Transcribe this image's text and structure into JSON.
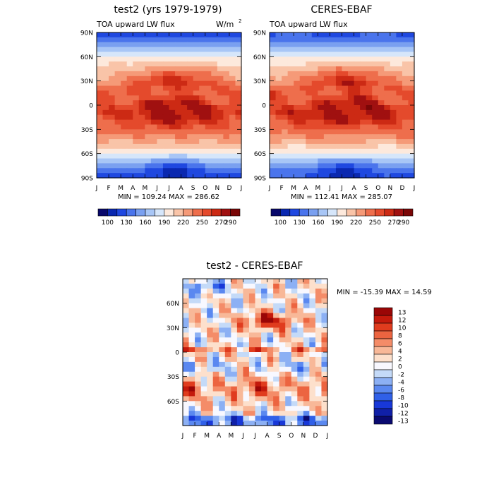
{
  "chart_data": [
    {
      "type": "heatmap",
      "title": "test2 (yrs 1979-1979)",
      "subtitle_left": "TOA upward LW flux",
      "subtitle_right": "W/m",
      "units_superscript": "2",
      "x_ticks": [
        "J",
        "F",
        "M",
        "A",
        "M",
        "J",
        "J",
        "A",
        "S",
        "O",
        "N",
        "D",
        "J"
      ],
      "y_ticks": [
        "90N",
        "60N",
        "30N",
        "0",
        "30S",
        "60S",
        "90S"
      ],
      "y_range": [
        -90,
        90
      ],
      "stats": "MIN = 109.24  MAX = 286.62",
      "min": 109.24,
      "max": 286.62,
      "colorbar_labels": [
        "100",
        "130",
        "160",
        "190",
        "220",
        "250",
        "270",
        "290"
      ]
    },
    {
      "type": "heatmap",
      "title": "CERES-EBAF",
      "subtitle_left": "TOA upward LW flux",
      "x_ticks": [
        "J",
        "F",
        "M",
        "A",
        "M",
        "J",
        "J",
        "A",
        "S",
        "O",
        "N",
        "D",
        "J"
      ],
      "y_ticks": [
        "90N",
        "60N",
        "30N",
        "0",
        "30S",
        "60S",
        "90S"
      ],
      "y_range": [
        -90,
        90
      ],
      "stats": "MIN = 112.41  MAX = 285.07",
      "min": 112.41,
      "max": 285.07,
      "colorbar_labels": [
        "100",
        "130",
        "160",
        "190",
        "220",
        "250",
        "270",
        "290"
      ]
    },
    {
      "type": "heatmap",
      "title": "test2 - CERES-EBAF",
      "x_ticks": [
        "J",
        "F",
        "M",
        "A",
        "M",
        "J",
        "J",
        "A",
        "S",
        "O",
        "N",
        "D",
        "J"
      ],
      "y_ticks": [
        "60N",
        "30N",
        "0",
        "30S",
        "60S"
      ],
      "y_range": [
        -90,
        90
      ],
      "stats": "MIN = -15.39  MAX =  14.59",
      "min": -15.39,
      "max": 14.59,
      "colorbar_labels": [
        "13",
        "12",
        "10",
        "8",
        "6",
        "4",
        "2",
        "0",
        "-2",
        "-4",
        "-6",
        "-8",
        "-10",
        "-12",
        "-13"
      ]
    }
  ],
  "colors": {
    "flux_palette": [
      "#08086b",
      "#0a28b0",
      "#1f48e0",
      "#4a74ec",
      "#7aa0f0",
      "#a8c6f6",
      "#d6e6fa",
      "#fde9dc",
      "#f9c4a8",
      "#f59a78",
      "#ee6e4c",
      "#e44a2c",
      "#cc2a14",
      "#a01010",
      "#7a0606"
    ],
    "diff_palette": [
      "#0a0a70",
      "#1020a8",
      "#1838d8",
      "#3060e8",
      "#5a88f0",
      "#8cb0f4",
      "#c4daf8",
      "#f8f8ff",
      "#fde0cc",
      "#f8b898",
      "#f48c68",
      "#ec6440",
      "#e03c1e",
      "#c41a0c",
      "#9a0606"
    ]
  }
}
